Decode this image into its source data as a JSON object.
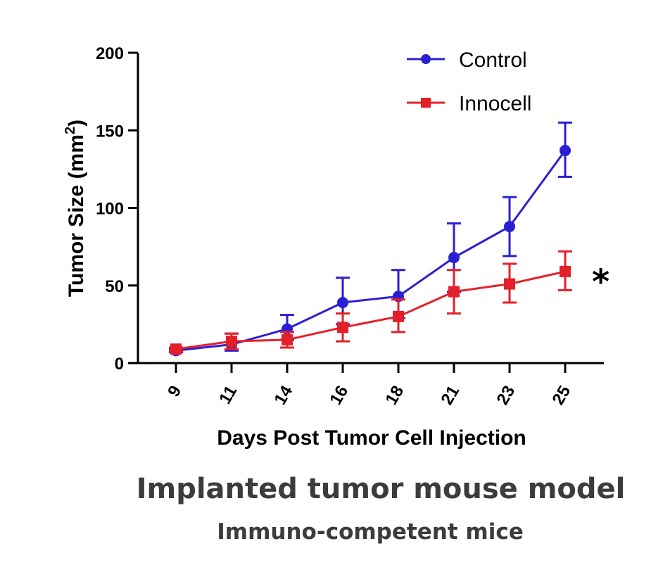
{
  "chart_data": {
    "type": "line",
    "xlabel": "Days Post Tumor Cell  Injection",
    "ylabel": "Tumor  Size (mm",
    "ylabel_sup": "2",
    "ylabel_close": ")",
    "categories": [
      "9",
      "11",
      "14",
      "16",
      "18",
      "21",
      "23",
      "25"
    ],
    "ylim": [
      0,
      200
    ],
    "yticks": [
      "0",
      "50",
      "100",
      "150",
      "200"
    ],
    "grid": false,
    "legend_position": "top-right",
    "series": [
      {
        "name": "Control",
        "color": "#2b1fd6",
        "marker": "circle",
        "values": [
          8,
          12,
          22,
          39,
          43,
          68,
          88,
          137
        ],
        "err_upper": [
          9,
          19,
          31,
          55,
          60,
          90,
          107,
          155
        ],
        "err_lower": [
          7,
          8,
          15,
          25,
          29,
          46,
          69,
          120
        ]
      },
      {
        "name": "Innocell",
        "color": "#e3202a",
        "marker": "square",
        "values": [
          9,
          14,
          15,
          23,
          30,
          46,
          51,
          59
        ],
        "err_upper": [
          10,
          19,
          20,
          32,
          41,
          60,
          64,
          72
        ],
        "err_lower": [
          8,
          9,
          10,
          14,
          20,
          32,
          39,
          47
        ]
      }
    ],
    "annotations": [
      "*"
    ]
  },
  "caption": {
    "title": "Implanted tumor mouse model",
    "subtitle": "Immuno-competent mice"
  }
}
